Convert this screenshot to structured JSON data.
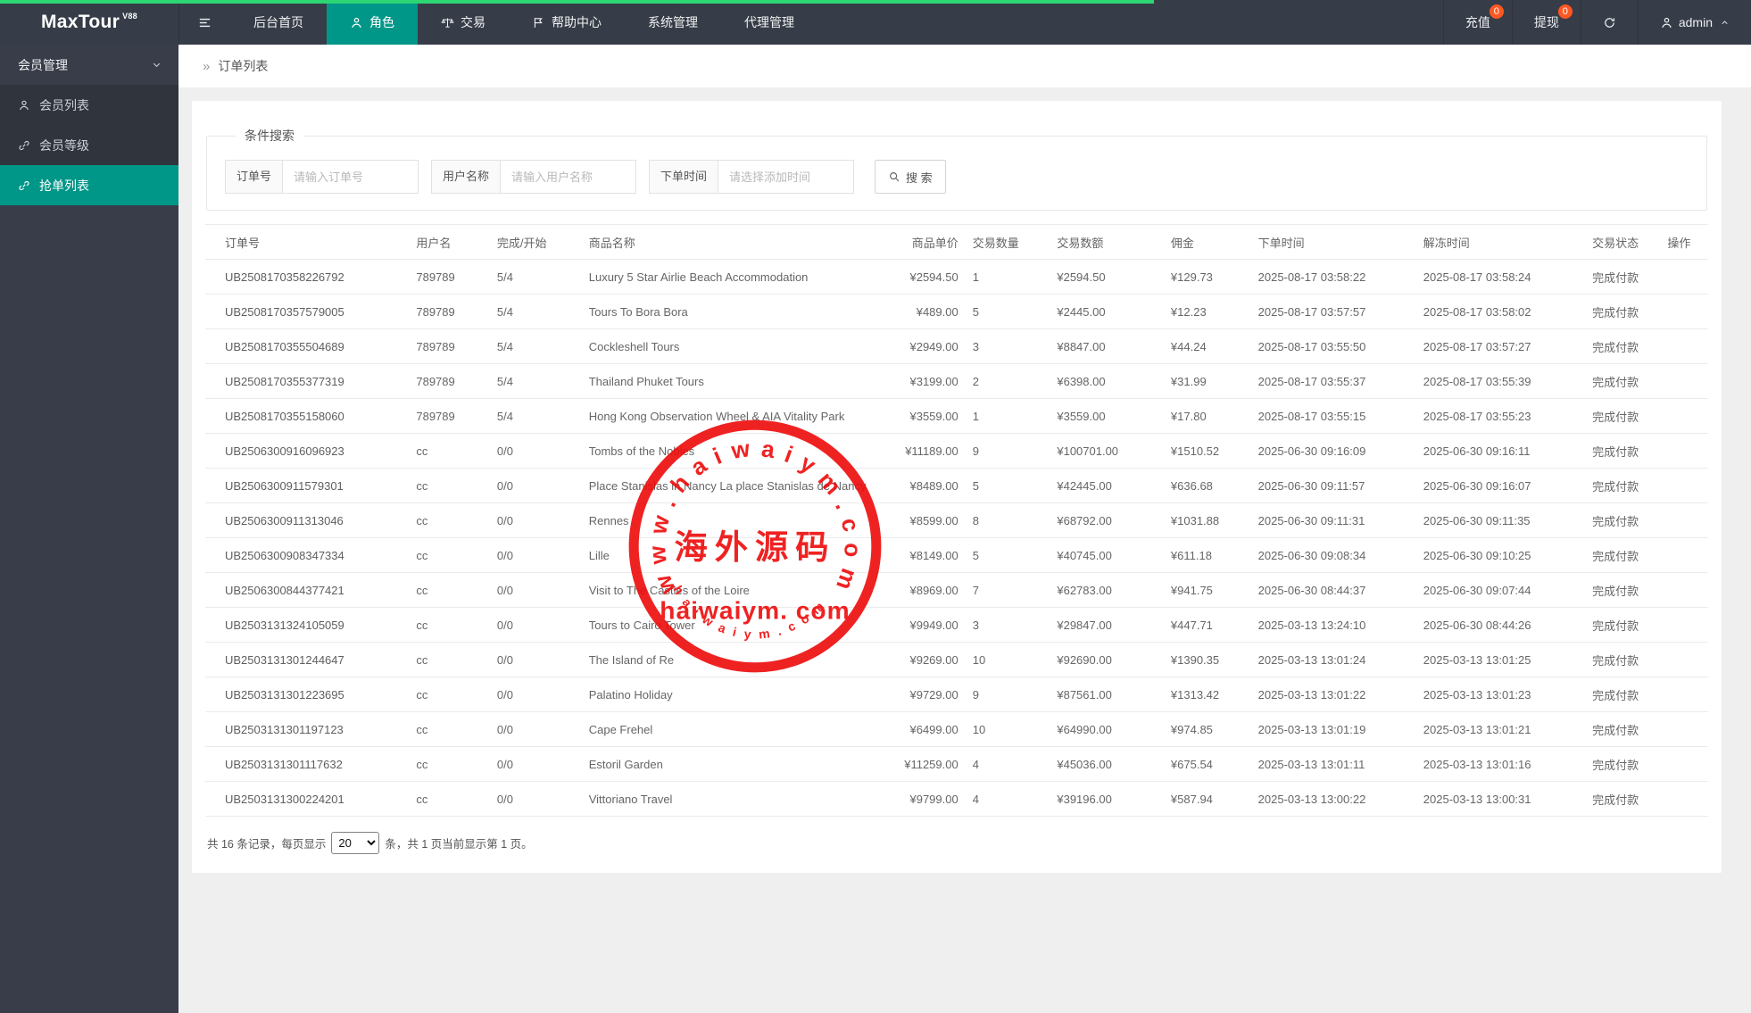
{
  "colors": {
    "accent_teal": "#009688",
    "progress_green": "#2cd673",
    "badge_orange": "#ff5722",
    "stamp_red": "#ee0b0b",
    "topbar_dark": "#373d48",
    "sidebar_dark": "#393d49"
  },
  "topbar": {
    "logo_text": "MaxTour",
    "logo_version": "V88",
    "nav": [
      {
        "label": "后台首页"
      },
      {
        "label": "角色",
        "icon": "user",
        "active": true
      },
      {
        "label": "交易",
        "icon": "scales"
      },
      {
        "label": "帮助中心",
        "icon": "flag"
      },
      {
        "label": "系统管理"
      },
      {
        "label": "代理管理"
      }
    ],
    "quick_links": [
      {
        "label": "充值",
        "badge": "0"
      },
      {
        "label": "提现",
        "badge": "0"
      }
    ],
    "user": "admin"
  },
  "sidebar": {
    "group": "会员管理",
    "items": [
      {
        "label": "会员列表",
        "icon": "user"
      },
      {
        "label": "会员等级",
        "icon": "link"
      },
      {
        "label": "抢单列表",
        "icon": "link",
        "active": true
      }
    ]
  },
  "breadcrumb": {
    "arrow": "»",
    "title": "订单列表"
  },
  "search": {
    "legend": "条件搜索",
    "fields": [
      {
        "label": "订单号",
        "placeholder": "请输入订单号"
      },
      {
        "label": "用户名称",
        "placeholder": "请输入用户名称"
      },
      {
        "label": "下单时间",
        "placeholder": "请选择添加时间"
      }
    ],
    "button": "搜 索"
  },
  "table": {
    "columns": [
      "订单号",
      "用户名",
      "完成/开始",
      "商品名称",
      "商品单价",
      "交易数量",
      "交易数额",
      "佣金",
      "下单时间",
      "解冻时间",
      "交易状态",
      "操作"
    ],
    "rows": [
      [
        "UB2508170358226792",
        "789789",
        "5/4",
        "Luxury 5 Star Airlie Beach Accommodation",
        "¥2594.50",
        "1",
        "¥2594.50",
        "¥129.73",
        "2025-08-17 03:58:22",
        "2025-08-17 03:58:24",
        "完成付款"
      ],
      [
        "UB2508170357579005",
        "789789",
        "5/4",
        "Tours To Bora Bora",
        "¥489.00",
        "5",
        "¥2445.00",
        "¥12.23",
        "2025-08-17 03:57:57",
        "2025-08-17 03:58:02",
        "完成付款"
      ],
      [
        "UB2508170355504689",
        "789789",
        "5/4",
        "Cockleshell Tours",
        "¥2949.00",
        "3",
        "¥8847.00",
        "¥44.24",
        "2025-08-17 03:55:50",
        "2025-08-17 03:57:27",
        "完成付款"
      ],
      [
        "UB2508170355377319",
        "789789",
        "5/4",
        "Thailand Phuket Tours",
        "¥3199.00",
        "2",
        "¥6398.00",
        "¥31.99",
        "2025-08-17 03:55:37",
        "2025-08-17 03:55:39",
        "完成付款"
      ],
      [
        "UB2508170355158060",
        "789789",
        "5/4",
        "Hong Kong Observation Wheel & AIA Vitality Park",
        "¥3559.00",
        "1",
        "¥3559.00",
        "¥17.80",
        "2025-08-17 03:55:15",
        "2025-08-17 03:55:23",
        "完成付款"
      ],
      [
        "UB2506300916096923",
        "cc",
        "0/0",
        "Tombs of the Nobles",
        "¥11189.00",
        "9",
        "¥100701.00",
        "¥1510.52",
        "2025-06-30 09:16:09",
        "2025-06-30 09:16:11",
        "完成付款"
      ],
      [
        "UB2506300911579301",
        "cc",
        "0/0",
        "Place Stanislas in Nancy La place Stanislas de Nancy",
        "¥8489.00",
        "5",
        "¥42445.00",
        "¥636.68",
        "2025-06-30 09:11:57",
        "2025-06-30 09:16:07",
        "完成付款"
      ],
      [
        "UB2506300911313046",
        "cc",
        "0/0",
        "Rennes",
        "¥8599.00",
        "8",
        "¥68792.00",
        "¥1031.88",
        "2025-06-30 09:11:31",
        "2025-06-30 09:11:35",
        "完成付款"
      ],
      [
        "UB2506300908347334",
        "cc",
        "0/0",
        "Lille",
        "¥8149.00",
        "5",
        "¥40745.00",
        "¥611.18",
        "2025-06-30 09:08:34",
        "2025-06-30 09:10:25",
        "完成付款"
      ],
      [
        "UB2506300844377421",
        "cc",
        "0/0",
        "Visit to The Castles of the Loire",
        "¥8969.00",
        "7",
        "¥62783.00",
        "¥941.75",
        "2025-06-30 08:44:37",
        "2025-06-30 09:07:44",
        "完成付款"
      ],
      [
        "UB2503131324105059",
        "cc",
        "0/0",
        "Tours to Cairo Tower",
        "¥9949.00",
        "3",
        "¥29847.00",
        "¥447.71",
        "2025-03-13 13:24:10",
        "2025-06-30 08:44:26",
        "完成付款"
      ],
      [
        "UB2503131301244647",
        "cc",
        "0/0",
        "The Island of Re",
        "¥9269.00",
        "10",
        "¥92690.00",
        "¥1390.35",
        "2025-03-13 13:01:24",
        "2025-03-13 13:01:25",
        "完成付款"
      ],
      [
        "UB2503131301223695",
        "cc",
        "0/0",
        "Palatino Holiday",
        "¥9729.00",
        "9",
        "¥87561.00",
        "¥1313.42",
        "2025-03-13 13:01:22",
        "2025-03-13 13:01:23",
        "完成付款"
      ],
      [
        "UB2503131301197123",
        "cc",
        "0/0",
        "Cape Frehel",
        "¥6499.00",
        "10",
        "¥64990.00",
        "¥974.85",
        "2025-03-13 13:01:19",
        "2025-03-13 13:01:21",
        "完成付款"
      ],
      [
        "UB2503131301117632",
        "cc",
        "0/0",
        "Estoril Garden",
        "¥11259.00",
        "4",
        "¥45036.00",
        "¥675.54",
        "2025-03-13 13:01:11",
        "2025-03-13 13:01:16",
        "完成付款"
      ],
      [
        "UB2503131300224201",
        "cc",
        "0/0",
        "Vittoriano Travel",
        "¥9799.00",
        "4",
        "¥39196.00",
        "¥587.94",
        "2025-03-13 13:00:22",
        "2025-03-13 13:00:31",
        "完成付款"
      ]
    ]
  },
  "pagination": {
    "prefix": "共 16 条记录，每页显示",
    "page_size": "20",
    "suffix": "条，共 1 页当前显示第 1 页。"
  },
  "watermark": {
    "center_cn": "海外源码",
    "center_en": "haiwaiym. com",
    "arc_top": "w w w . h a i w a i y m . c o m",
    "arc_bottom": "h a i w a i y m . c o m"
  }
}
